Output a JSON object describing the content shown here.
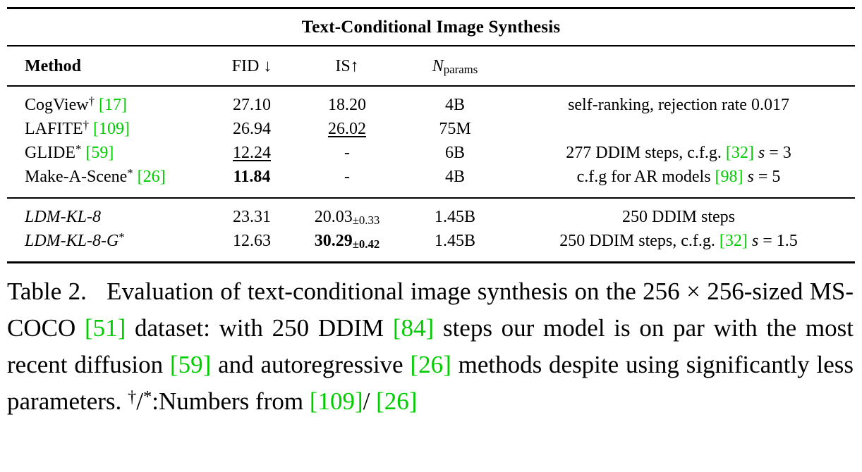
{
  "colors": {
    "citation_green": "#00cc00",
    "text": "#000000",
    "background": "#ffffff"
  },
  "table": {
    "title": "Text-Conditional Image Synthesis",
    "header": {
      "method": [
        {
          "t": "Method",
          "b": true
        }
      ],
      "fid": [
        {
          "t": "FID "
        },
        {
          "t": "↓"
        }
      ],
      "is": [
        {
          "t": "IS"
        },
        {
          "t": "↑"
        }
      ],
      "nparams": [
        {
          "t": "N",
          "i": true
        },
        {
          "t": "params",
          "sub": true
        }
      ],
      "notes": []
    },
    "groups": [
      {
        "rows": [
          {
            "method": [
              {
                "t": "CogView"
              },
              {
                "t": "†",
                "sup": true
              },
              {
                "t": " "
              },
              {
                "t": "[17]",
                "cite": true
              }
            ],
            "fid": [
              {
                "t": "27.10"
              }
            ],
            "is": [
              {
                "t": "18.20"
              }
            ],
            "nparams": [
              {
                "t": "4B"
              }
            ],
            "notes": [
              {
                "t": "self-ranking, rejection rate 0.017"
              }
            ]
          },
          {
            "method": [
              {
                "t": "LAFITE"
              },
              {
                "t": "†",
                "sup": true
              },
              {
                "t": " "
              },
              {
                "t": "[109]",
                "cite": true
              }
            ],
            "fid": [
              {
                "t": "26.94"
              }
            ],
            "is": [
              {
                "t": "26.02",
                "u": true
              }
            ],
            "nparams": [
              {
                "t": "75M"
              }
            ],
            "notes": []
          },
          {
            "method": [
              {
                "t": "GLIDE"
              },
              {
                "t": "*",
                "sup": true
              },
              {
                "t": " "
              },
              {
                "t": "[59]",
                "cite": true
              }
            ],
            "fid": [
              {
                "t": "12.24",
                "u": true
              }
            ],
            "is": [
              {
                "t": "-"
              }
            ],
            "nparams": [
              {
                "t": "6B"
              }
            ],
            "notes": [
              {
                "t": "277 DDIM steps, c.f.g. "
              },
              {
                "t": "[32]",
                "cite": true
              },
              {
                "t": " "
              },
              {
                "t": "s",
                "i": true
              },
              {
                "t": " = 3"
              }
            ]
          },
          {
            "method": [
              {
                "t": "Make-A-Scene"
              },
              {
                "t": "*",
                "sup": true
              },
              {
                "t": " "
              },
              {
                "t": "[26]",
                "cite": true
              }
            ],
            "fid": [
              {
                "t": "11.84",
                "b": true
              }
            ],
            "is": [
              {
                "t": "-"
              }
            ],
            "nparams": [
              {
                "t": "4B"
              }
            ],
            "notes": [
              {
                "t": "c.f.g for AR models "
              },
              {
                "t": "[98]",
                "cite": true
              },
              {
                "t": " "
              },
              {
                "t": "s",
                "i": true
              },
              {
                "t": " = 5"
              }
            ]
          }
        ]
      },
      {
        "rows": [
          {
            "method": [
              {
                "t": "LDM-KL-8",
                "i": true
              }
            ],
            "fid": [
              {
                "t": "23.31"
              }
            ],
            "is": [
              {
                "t": "20.03"
              },
              {
                "t": "±0.33",
                "sub": true
              }
            ],
            "nparams": [
              {
                "t": "1.45B"
              }
            ],
            "notes": [
              {
                "t": "250 DDIM steps"
              }
            ]
          },
          {
            "method": [
              {
                "t": "LDM-KL-8-G",
                "i": true
              },
              {
                "t": "*",
                "sup": true
              }
            ],
            "fid": [
              {
                "t": "12.63"
              }
            ],
            "is": [
              {
                "t": "30.29",
                "b": true
              },
              {
                "t": "±0.42",
                "sub": true,
                "b": true
              }
            ],
            "nparams": [
              {
                "t": "1.45B"
              }
            ],
            "notes": [
              {
                "t": "250 DDIM steps, c.f.g. "
              },
              {
                "t": "[32]",
                "cite": true
              },
              {
                "t": " "
              },
              {
                "t": "s",
                "i": true
              },
              {
                "t": " = 1.5"
              }
            ]
          }
        ]
      }
    ]
  },
  "caption": {
    "segments": [
      {
        "t": "Table 2.   Evaluation of text-conditional image synthesis on the 256 × 256-sized MS-COCO "
      },
      {
        "t": "[51]",
        "cite": true
      },
      {
        "t": " dataset: with 250 DDIM "
      },
      {
        "t": "[84]",
        "cite": true
      },
      {
        "t": " steps our model is on par with the most recent diffusion "
      },
      {
        "t": "[59]",
        "cite": true
      },
      {
        "t": " and autoregressive "
      },
      {
        "t": "[26]",
        "cite": true
      },
      {
        "t": " methods despite using significantly less parameters. "
      },
      {
        "t": "†",
        "sup": true
      },
      {
        "t": "/"
      },
      {
        "t": "*",
        "sup": true
      },
      {
        "t": ":Numbers from "
      },
      {
        "t": "[109]",
        "cite": true
      },
      {
        "t": "/ "
      },
      {
        "t": "[26]",
        "cite": true
      }
    ]
  }
}
